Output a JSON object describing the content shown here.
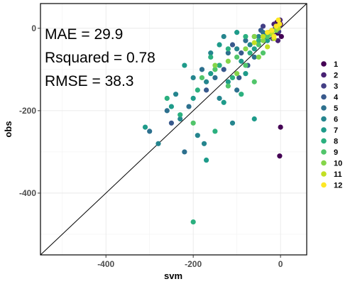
{
  "chart_data": {
    "type": "scatter",
    "xlabel": "svm",
    "ylabel": "obs",
    "xlim": [
      -550,
      60
    ],
    "ylim": [
      -550,
      60
    ],
    "xticks": [
      -400,
      -200,
      0
    ],
    "yticks": [
      0,
      -200,
      -400
    ],
    "xtick_labels": [
      "-400",
      "-200",
      "0"
    ],
    "ytick_labels": [
      "0",
      "-200",
      "-400"
    ],
    "grid": true,
    "legend_position": "right",
    "identity_line": true,
    "annotations": [
      "MAE = 29.9",
      "Rsquared = 0.78",
      "RMSE = 38.3"
    ],
    "series": [
      {
        "name": "1",
        "color": "#440154",
        "points": [
          [
            0,
            10
          ],
          [
            -5,
            0
          ],
          [
            2,
            -20
          ],
          [
            -8,
            15
          ],
          [
            0,
            -240
          ],
          [
            -2,
            -310
          ],
          [
            -6,
            -12
          ]
        ]
      },
      {
        "name": "2",
        "color": "#482173",
        "points": [
          [
            -3,
            5
          ],
          [
            -10,
            -5
          ],
          [
            -1,
            20
          ],
          [
            -15,
            10
          ],
          [
            -6,
            -30
          ]
        ]
      },
      {
        "name": "3",
        "color": "#433E85",
        "points": [
          [
            -12,
            0
          ],
          [
            -25,
            -10
          ],
          [
            -4,
            -8
          ],
          [
            -40,
            5
          ],
          [
            -18,
            -25
          ]
        ]
      },
      {
        "name": "4",
        "color": "#38598C",
        "points": [
          [
            -60,
            -20
          ],
          [
            -90,
            -60
          ],
          [
            -130,
            -100
          ],
          [
            -45,
            -5
          ],
          [
            -110,
            -40
          ],
          [
            -170,
            -150
          ],
          [
            -75,
            -90
          ],
          [
            -250,
            -230
          ],
          [
            -30,
            -15
          ],
          [
            -95,
            -120
          ]
        ]
      },
      {
        "name": "5",
        "color": "#2D708E",
        "points": [
          [
            -80,
            -30
          ],
          [
            -150,
            -120
          ],
          [
            -210,
            -190
          ],
          [
            -120,
            -60
          ],
          [
            -60,
            -70
          ],
          [
            -180,
            -100
          ],
          [
            -300,
            -250
          ],
          [
            -40,
            -10
          ],
          [
            -220,
            -300
          ],
          [
            -100,
            -150
          ],
          [
            -260,
            -200
          ],
          [
            -140,
            -90
          ]
        ]
      },
      {
        "name": "6",
        "color": "#25858E",
        "points": [
          [
            -100,
            -50
          ],
          [
            -170,
            -130
          ],
          [
            -230,
            -220
          ],
          [
            -70,
            -40
          ],
          [
            -140,
            -170
          ],
          [
            -200,
            -120
          ],
          [
            -280,
            -280
          ],
          [
            -50,
            -20
          ],
          [
            -160,
            -60
          ],
          [
            -110,
            -230
          ],
          [
            -190,
            -260
          ],
          [
            -130,
            -20
          ],
          [
            -240,
            -160
          ],
          [
            -20,
            -5
          ],
          [
            -175,
            -280
          ]
        ]
      },
      {
        "name": "7",
        "color": "#1E9B8A",
        "points": [
          [
            -90,
            -80
          ],
          [
            -160,
            -110
          ],
          [
            -120,
            -130
          ],
          [
            -60,
            -50
          ],
          [
            -200,
            -170
          ],
          [
            -250,
            -190
          ],
          [
            -30,
            -30
          ],
          [
            -140,
            -40
          ],
          [
            -80,
            -110
          ],
          [
            -310,
            -240
          ],
          [
            -170,
            -320
          ],
          [
            -100,
            -10
          ],
          [
            -220,
            -90
          ],
          [
            -130,
            -180
          ],
          [
            -60,
            -220
          ]
        ]
      },
      {
        "name": "8",
        "color": "#2BB07F",
        "points": [
          [
            -70,
            -60
          ],
          [
            -140,
            -90
          ],
          [
            -190,
            -150
          ],
          [
            -50,
            -30
          ],
          [
            -110,
            -120
          ],
          [
            -230,
            -210
          ],
          [
            -35,
            -20
          ],
          [
            -160,
            -70
          ],
          [
            -90,
            -160
          ],
          [
            -260,
            -170
          ],
          [
            -200,
            -470
          ],
          [
            -150,
            -250
          ],
          [
            -120,
            -50
          ],
          [
            -80,
            -20
          ]
        ]
      },
      {
        "name": "9",
        "color": "#51C56A",
        "points": [
          [
            -50,
            -40
          ],
          [
            -100,
            -70
          ],
          [
            -150,
            -100
          ],
          [
            -30,
            -20
          ],
          [
            -80,
            -90
          ],
          [
            -120,
            -140
          ],
          [
            -20,
            -10
          ],
          [
            -180,
            -120
          ],
          [
            -60,
            -130
          ],
          [
            -40,
            -60
          ],
          [
            -200,
            -230
          ]
        ]
      },
      {
        "name": "10",
        "color": "#85D54A",
        "points": [
          [
            -40,
            -30
          ],
          [
            -80,
            -50
          ],
          [
            -20,
            -15
          ],
          [
            -120,
            -80
          ],
          [
            -60,
            -20
          ],
          [
            -10,
            -5
          ],
          [
            -100,
            -110
          ],
          [
            -50,
            -70
          ],
          [
            -150,
            -90
          ]
        ]
      },
      {
        "name": "11",
        "color": "#C2DF23",
        "points": [
          [
            -20,
            -10
          ],
          [
            -40,
            -20
          ],
          [
            -10,
            5
          ],
          [
            -60,
            -35
          ],
          [
            -5,
            0
          ],
          [
            -30,
            -45
          ],
          [
            -15,
            -25
          ]
        ]
      },
      {
        "name": "12",
        "color": "#FDE725",
        "points": [
          [
            -10,
            5
          ],
          [
            -20,
            -5
          ],
          [
            -5,
            20
          ],
          [
            -30,
            -10
          ],
          [
            -2,
            10
          ],
          [
            -15,
            -20
          ]
        ]
      }
    ]
  }
}
